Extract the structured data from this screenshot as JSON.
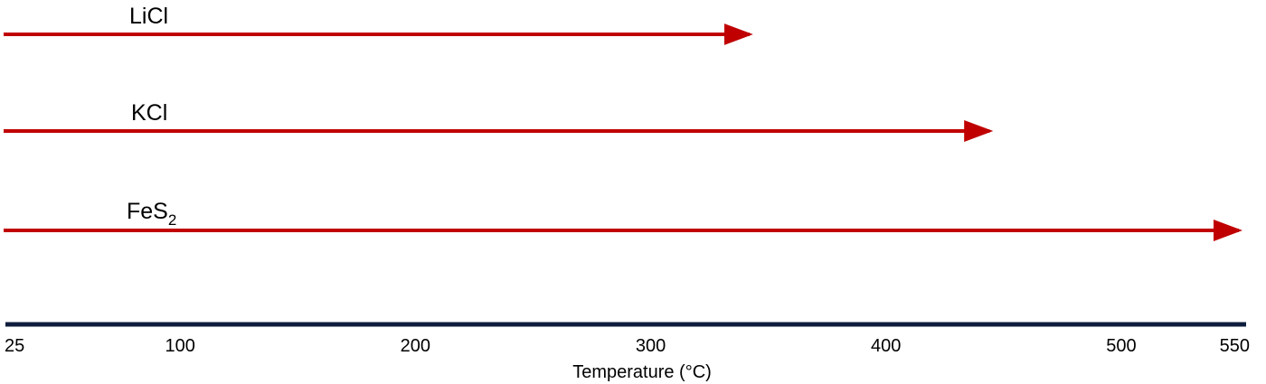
{
  "chart_data": {
    "type": "bar",
    "title": "",
    "xlabel": "Temperature (°C)",
    "ylabel": "",
    "xlim": [
      25,
      550
    ],
    "ticks": [
      25,
      100,
      200,
      300,
      400,
      500,
      550
    ],
    "tick_labels": [
      "25",
      "100",
      "200",
      "300",
      "400",
      "500",
      "550"
    ],
    "series": [
      {
        "name": "LiCl",
        "base": "LiCl",
        "sub": "",
        "start": 25,
        "end": 342
      },
      {
        "name": "KCl",
        "base": "KCl",
        "sub": "",
        "start": 25,
        "end": 444
      },
      {
        "name": "FeS2",
        "base": "FeS",
        "sub": "2",
        "start": 25,
        "end": 550
      }
    ],
    "colors": {
      "arrow": "#c00000",
      "axis": "#0f1d3d"
    }
  }
}
